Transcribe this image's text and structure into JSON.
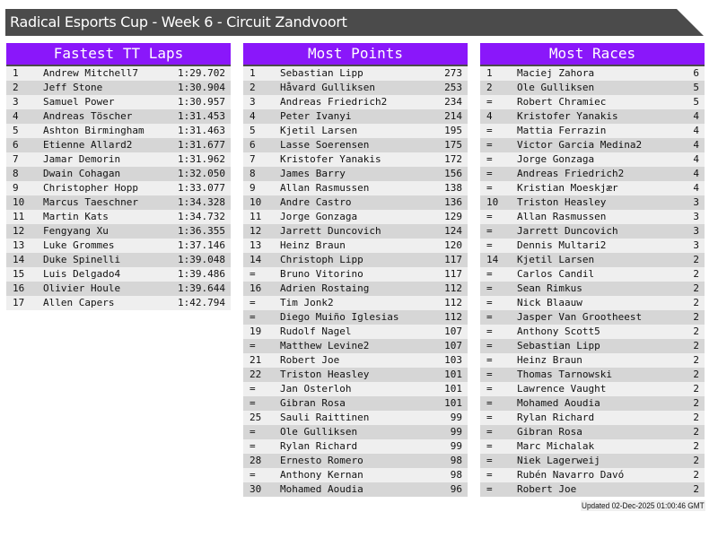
{
  "title": "Radical Esports Cup - Week 6 - Circuit Zandvoort",
  "colors": {
    "title_bar": "#4b4b4b",
    "panel_header": "#8a17fa",
    "row_light": "#efefef",
    "row_dark": "#d6d6d6"
  },
  "panels": [
    {
      "title": "Fastest TT Laps",
      "rows": [
        [
          "1",
          "Andrew Mitchell7",
          "1:29.702"
        ],
        [
          "2",
          "Jeff Stone",
          "1:30.904"
        ],
        [
          "3",
          "Samuel Power",
          "1:30.957"
        ],
        [
          "4",
          "Andreas Töscher",
          "1:31.453"
        ],
        [
          "5",
          "Ashton Birmingham",
          "1:31.463"
        ],
        [
          "6",
          "Etienne Allard2",
          "1:31.677"
        ],
        [
          "7",
          "Jamar Demorin",
          "1:31.962"
        ],
        [
          "8",
          "Dwain Cohagan",
          "1:32.050"
        ],
        [
          "9",
          "Christopher Hopp",
          "1:33.077"
        ],
        [
          "10",
          "Marcus Taeschner",
          "1:34.328"
        ],
        [
          "11",
          "Martin Kats",
          "1:34.732"
        ],
        [
          "12",
          "Fengyang Xu",
          "1:36.355"
        ],
        [
          "13",
          "Luke Grommes",
          "1:37.146"
        ],
        [
          "14",
          "Duke Spinelli",
          "1:39.048"
        ],
        [
          "15",
          "Luis Delgado4",
          "1:39.486"
        ],
        [
          "16",
          "Olivier Houle",
          "1:39.644"
        ],
        [
          "17",
          "Allen Capers",
          "1:42.794"
        ]
      ]
    },
    {
      "title": "Most Points",
      "rows": [
        [
          "1",
          "Sebastian Lipp",
          "273"
        ],
        [
          "2",
          "Håvard Gulliksen",
          "253"
        ],
        [
          "3",
          "Andreas Friedrich2",
          "234"
        ],
        [
          "4",
          "Peter Ivanyi",
          "214"
        ],
        [
          "5",
          "Kjetil Larsen",
          "195"
        ],
        [
          "6",
          "Lasse Soerensen",
          "175"
        ],
        [
          "7",
          "Kristofer Yanakis",
          "172"
        ],
        [
          "8",
          "James Barry",
          "156"
        ],
        [
          "9",
          "Allan Rasmussen",
          "138"
        ],
        [
          "10",
          "Andre Castro",
          "136"
        ],
        [
          "11",
          "Jorge Gonzaga",
          "129"
        ],
        [
          "12",
          "Jarrett Duncovich",
          "124"
        ],
        [
          "13",
          "Heinz Braun",
          "120"
        ],
        [
          "14",
          "Christoph Lipp",
          "117"
        ],
        [
          "=",
          "Bruno Vitorino",
          "117"
        ],
        [
          "16",
          "Adrien Rostaing",
          "112"
        ],
        [
          "=",
          "Tim Jonk2",
          "112"
        ],
        [
          "=",
          "Diego Muiño Iglesias",
          "112"
        ],
        [
          "19",
          "Rudolf Nagel",
          "107"
        ],
        [
          "=",
          "Matthew Levine2",
          "107"
        ],
        [
          "21",
          "Robert Joe",
          "103"
        ],
        [
          "22",
          "Triston Heasley",
          "101"
        ],
        [
          "=",
          "Jan Osterloh",
          "101"
        ],
        [
          "=",
          "Gibran Rosa",
          "101"
        ],
        [
          "25",
          "Sauli Raittinen",
          "99"
        ],
        [
          "=",
          "Ole Gulliksen",
          "99"
        ],
        [
          "=",
          "Rylan Richard",
          "99"
        ],
        [
          "28",
          "Ernesto Romero",
          "98"
        ],
        [
          "=",
          "Anthony Kernan",
          "98"
        ],
        [
          "30",
          "Mohamed Aoudia",
          "96"
        ]
      ]
    },
    {
      "title": "Most Races",
      "rows": [
        [
          "1",
          "Maciej Zahora",
          "6"
        ],
        [
          "2",
          "Ole Gulliksen",
          "5"
        ],
        [
          "=",
          "Robert Chramiec",
          "5"
        ],
        [
          "4",
          "Kristofer Yanakis",
          "4"
        ],
        [
          "=",
          "Mattia Ferrazin",
          "4"
        ],
        [
          "=",
          "Victor Garcia Medina2",
          "4"
        ],
        [
          "=",
          "Jorge Gonzaga",
          "4"
        ],
        [
          "=",
          "Andreas Friedrich2",
          "4"
        ],
        [
          "=",
          "Kristian Moeskjær",
          "4"
        ],
        [
          "10",
          "Triston Heasley",
          "3"
        ],
        [
          "=",
          "Allan Rasmussen",
          "3"
        ],
        [
          "=",
          "Jarrett Duncovich",
          "3"
        ],
        [
          "=",
          "Dennis Multari2",
          "3"
        ],
        [
          "14",
          "Kjetil Larsen",
          "2"
        ],
        [
          "=",
          "Carlos Candil",
          "2"
        ],
        [
          "=",
          "Sean Rimkus",
          "2"
        ],
        [
          "=",
          "Nick Blaauw",
          "2"
        ],
        [
          "=",
          "Jasper Van Grootheest",
          "2"
        ],
        [
          "=",
          "Anthony Scott5",
          "2"
        ],
        [
          "=",
          "Sebastian Lipp",
          "2"
        ],
        [
          "=",
          "Heinz Braun",
          "2"
        ],
        [
          "=",
          "Thomas Tarnowski",
          "2"
        ],
        [
          "=",
          "Lawrence Vaught",
          "2"
        ],
        [
          "=",
          "Mohamed Aoudia",
          "2"
        ],
        [
          "=",
          "Rylan Richard",
          "2"
        ],
        [
          "=",
          "Gibran Rosa",
          "2"
        ],
        [
          "=",
          "Marc Michalak",
          "2"
        ],
        [
          "=",
          "Niek Lagerweij",
          "2"
        ],
        [
          "=",
          "Rubén Navarro Davó",
          "2"
        ],
        [
          "=",
          "Robert Joe",
          "2"
        ]
      ]
    }
  ],
  "updated": "Updated 02-Dec-2025 01:00:46 GMT"
}
